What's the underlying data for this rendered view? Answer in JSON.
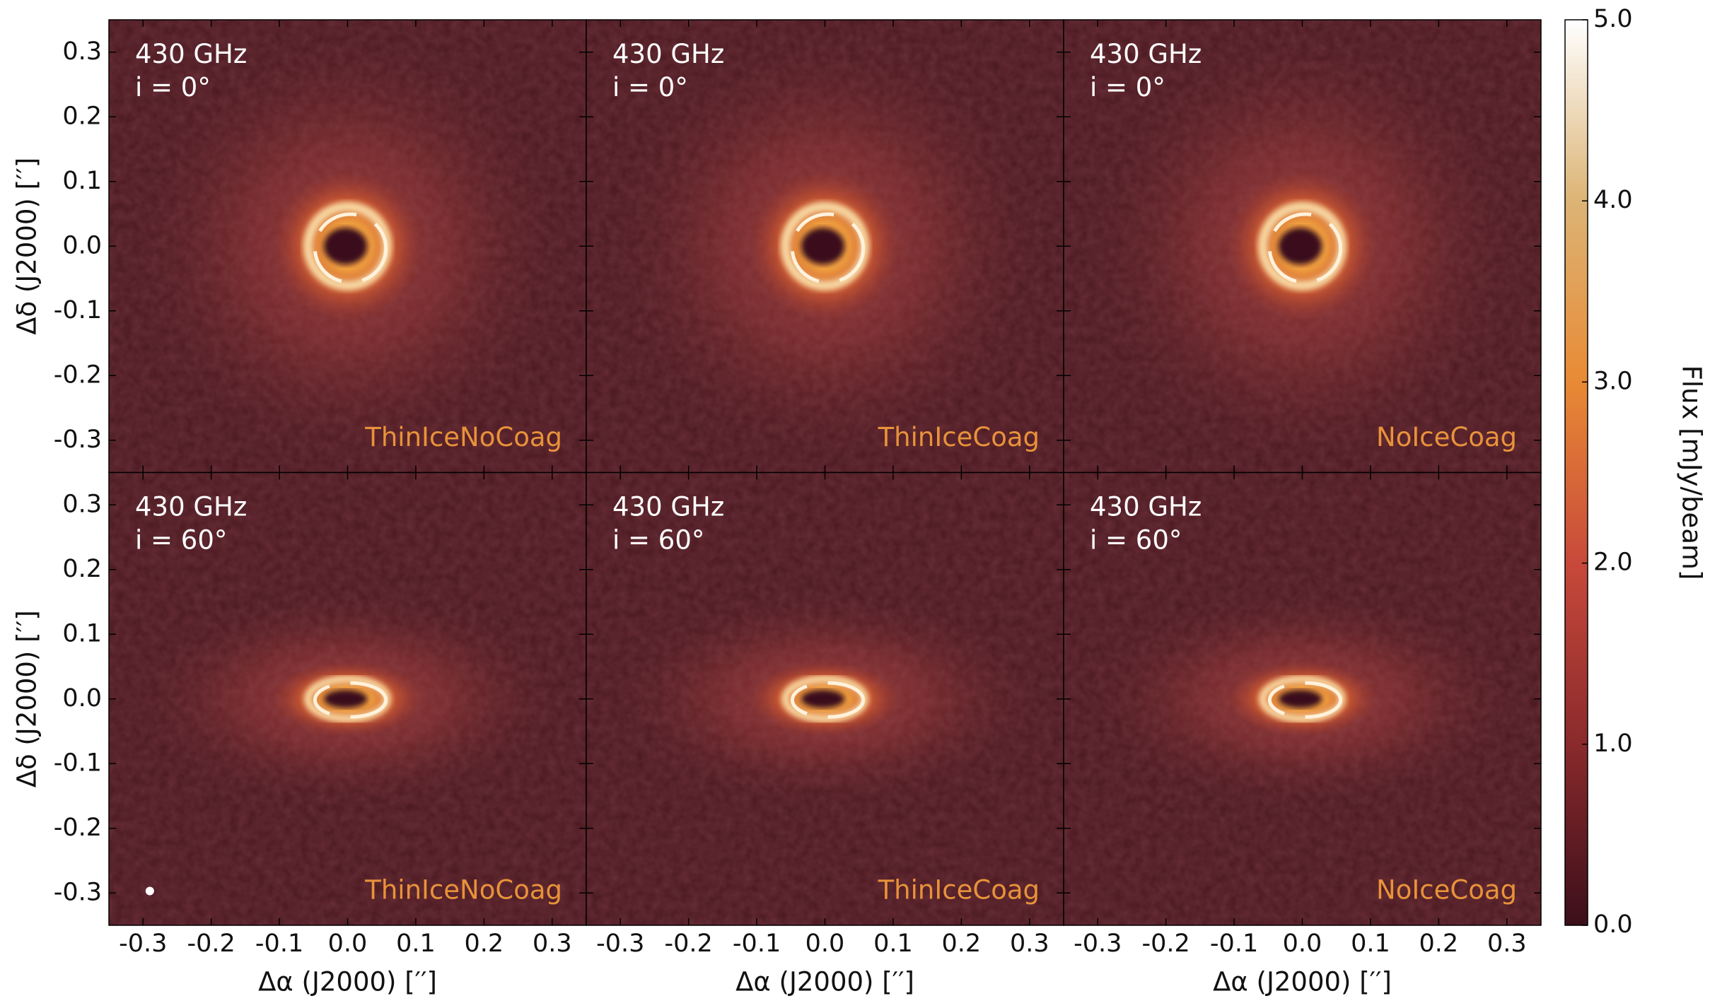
{
  "chart_data": {
    "type": "image-grid",
    "xlabel": "Δα (J2000) [′′]",
    "ylabel": "Δδ (J2000) [′′]",
    "xlim": [
      -0.35,
      0.35
    ],
    "ylim": [
      -0.35,
      0.35
    ],
    "xticks": [
      -0.3,
      -0.2,
      -0.1,
      {
        "value": 0,
        "label": "0.0"
      },
      0.1,
      0.2,
      0.3
    ],
    "yticks": [
      0.3,
      0.2,
      0.1,
      {
        "value": 0,
        "label": "0.0"
      },
      -0.1,
      -0.2,
      -0.3
    ],
    "panels": [
      {
        "frequency": "430 GHz",
        "inclination": "i = 0°",
        "model": "ThinIceNoCoag"
      },
      {
        "frequency": "430 GHz",
        "inclination": "i = 0°",
        "model": "ThinIceCoag"
      },
      {
        "frequency": "430 GHz",
        "inclination": "i = 0°",
        "model": "NoIceCoag"
      },
      {
        "frequency": "430 GHz",
        "inclination": "i = 60°",
        "model": "ThinIceNoCoag"
      },
      {
        "frequency": "430 GHz",
        "inclination": "i = 60°",
        "model": "ThinIceCoag"
      },
      {
        "frequency": "430 GHz",
        "inclination": "i = 60°",
        "model": "NoIceCoag"
      }
    ],
    "model_color": "#e8923a",
    "colorbar": {
      "label": "Flux [mJy/beam]",
      "ylim": [
        0,
        5
      ],
      "yticks": [
        {
          "value": 0,
          "label": "0.0"
        },
        {
          "value": 1,
          "label": "1.0"
        },
        {
          "value": 2,
          "label": "2.0"
        },
        {
          "value": 3,
          "label": "3.0"
        },
        {
          "value": 4,
          "label": "4.0"
        },
        {
          "value": 5,
          "label": "5.0"
        }
      ],
      "colormap": [
        "#3b0f1a",
        "#8a2a2c",
        "#c8493a",
        "#e88a35",
        "#dcb475",
        "#ffffff"
      ]
    }
  }
}
